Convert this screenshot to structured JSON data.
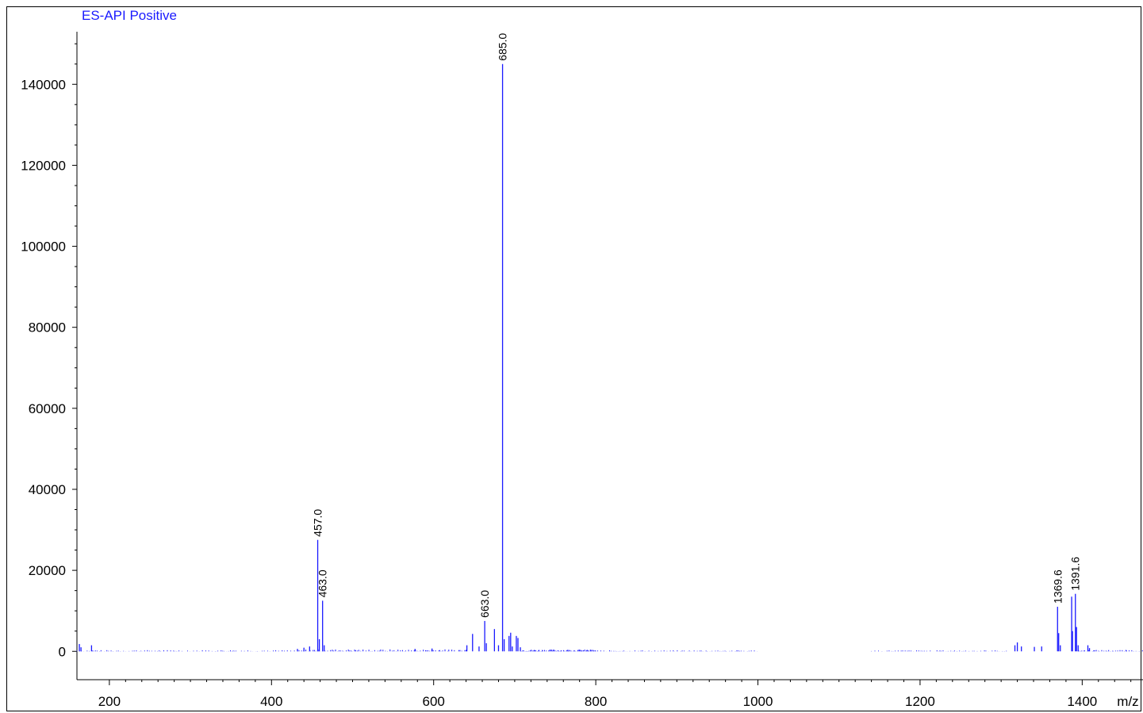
{
  "chart_data": {
    "type": "line",
    "title": "ES-API Positive",
    "xlabel": "m/z",
    "ylabel": "",
    "xlim": [
      160,
      1475
    ],
    "ylim": [
      -7000,
      152000
    ],
    "x_ticks": [
      200,
      400,
      600,
      800,
      1000,
      1200,
      1400
    ],
    "y_ticks": [
      0,
      20000,
      40000,
      60000,
      80000,
      100000,
      120000,
      140000
    ],
    "grid": false,
    "colors": {
      "series": "#1a1aff",
      "axis": "#000000",
      "title": "#1a1aff"
    },
    "series": [
      {
        "peaks": [
          {
            "x": 163,
            "y": 1800
          },
          {
            "x": 165,
            "y": 1000
          },
          {
            "x": 178,
            "y": 1500
          },
          {
            "x": 432,
            "y": 600
          },
          {
            "x": 440,
            "y": 900
          },
          {
            "x": 447,
            "y": 1200
          },
          {
            "x": 457.0,
            "y": 27500
          },
          {
            "x": 459,
            "y": 3000
          },
          {
            "x": 463.0,
            "y": 12500
          },
          {
            "x": 465,
            "y": 1500
          },
          {
            "x": 577,
            "y": 600
          },
          {
            "x": 598,
            "y": 700
          },
          {
            "x": 641,
            "y": 1500
          },
          {
            "x": 648,
            "y": 4300
          },
          {
            "x": 656,
            "y": 1200
          },
          {
            "x": 663.0,
            "y": 7500
          },
          {
            "x": 665,
            "y": 2000
          },
          {
            "x": 675,
            "y": 5500
          },
          {
            "x": 680,
            "y": 1500
          },
          {
            "x": 685.0,
            "y": 145000
          },
          {
            "x": 687,
            "y": 3000
          },
          {
            "x": 693,
            "y": 3800
          },
          {
            "x": 695,
            "y": 4600
          },
          {
            "x": 697,
            "y": 1200
          },
          {
            "x": 702,
            "y": 3800
          },
          {
            "x": 704,
            "y": 3300
          },
          {
            "x": 707,
            "y": 1000
          },
          {
            "x": 1317,
            "y": 1500
          },
          {
            "x": 1320,
            "y": 2200
          },
          {
            "x": 1325,
            "y": 1200
          },
          {
            "x": 1341,
            "y": 1100
          },
          {
            "x": 1350,
            "y": 1200
          },
          {
            "x": 1369.6,
            "y": 11000
          },
          {
            "x": 1371,
            "y": 4500
          },
          {
            "x": 1373,
            "y": 1500
          },
          {
            "x": 1387,
            "y": 13500
          },
          {
            "x": 1388,
            "y": 5000
          },
          {
            "x": 1391.6,
            "y": 14200
          },
          {
            "x": 1393,
            "y": 6000
          },
          {
            "x": 1395,
            "y": 1500
          },
          {
            "x": 1407,
            "y": 1500
          },
          {
            "x": 1409,
            "y": 800
          }
        ],
        "noise": [
          {
            "range": [
              160,
              440
            ],
            "max": 300,
            "step": 3
          },
          {
            "range": [
              440,
              640
            ],
            "max": 500,
            "step": 2.5
          },
          {
            "range": [
              707,
              800
            ],
            "max": 450,
            "step": 1.2
          },
          {
            "range": [
              800,
              1000
            ],
            "max": 250,
            "step": 3
          },
          {
            "range": [
              1140,
              1310
            ],
            "max": 250,
            "step": 3
          },
          {
            "range": [
              1395,
              1500
            ],
            "max": 350,
            "step": 2
          }
        ]
      }
    ],
    "peak_labels": [
      "457.0",
      "463.0",
      "663.0",
      "685.0",
      "1369.6",
      "1391.6"
    ],
    "peak_label_positions": [
      457.0,
      463.0,
      663.0,
      685.0,
      1369.6,
      1391.6
    ]
  }
}
